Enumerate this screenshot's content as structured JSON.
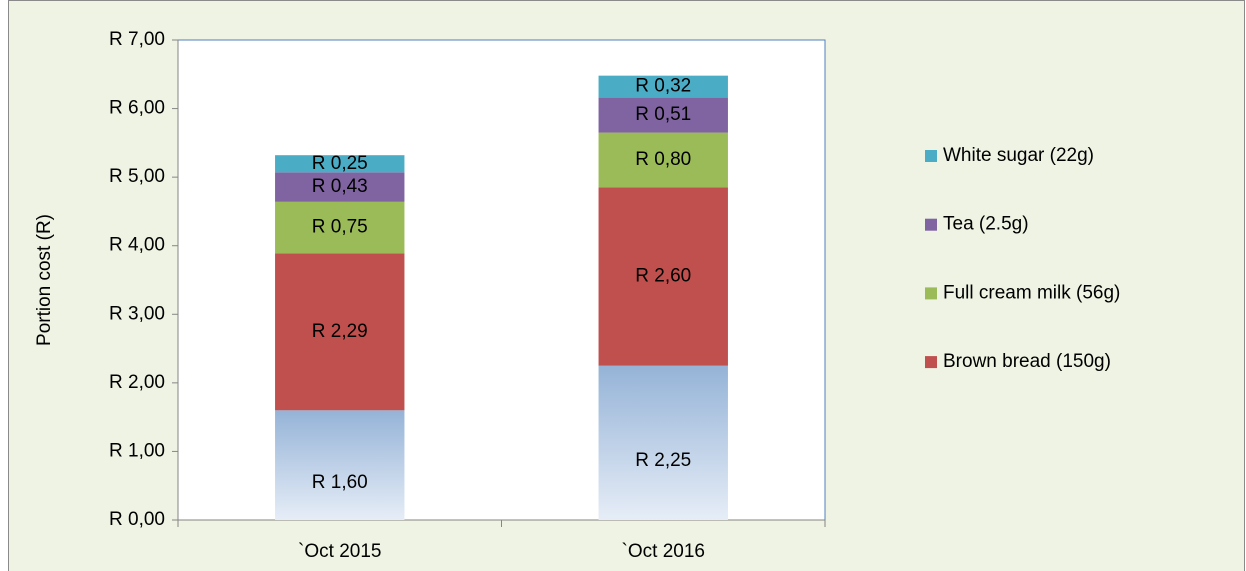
{
  "chart_data": {
    "type": "stacked-bar",
    "y_label": "Portion cost (R)",
    "categories": [
      "`Oct 2015",
      "`Oct 2016"
    ],
    "series": [
      {
        "color": "#95b3d7",
        "gradient": true,
        "values": [
          1.6,
          2.25
        ],
        "value_labels": [
          "R 1,60",
          "R 2,25"
        ]
      },
      {
        "name": "Brown bread (150g)",
        "color": "#c0504d",
        "values": [
          2.29,
          2.6
        ],
        "value_labels": [
          "R 2,29",
          "R 2,60"
        ]
      },
      {
        "name": "Full cream milk (56g)",
        "color": "#9bbb59",
        "values": [
          0.75,
          0.8
        ],
        "value_labels": [
          "R 0,75",
          "R 0,80"
        ]
      },
      {
        "name": "Tea (2.5g)",
        "color": "#8064a2",
        "values": [
          0.43,
          0.51
        ],
        "value_labels": [
          "R 0,43",
          "R 0,51"
        ]
      },
      {
        "name": "White sugar (22g)",
        "color": "#4bacc6",
        "values": [
          0.25,
          0.32
        ],
        "value_labels": [
          "R 0,25",
          "R 0,32"
        ]
      }
    ],
    "ylim": [
      0,
      7
    ],
    "yticks": [
      {
        "value": 0,
        "label": "R 0,00"
      },
      {
        "value": 1,
        "label": "R 1,00"
      },
      {
        "value": 2,
        "label": "R 2,00"
      },
      {
        "value": 3,
        "label": "R 3,00"
      },
      {
        "value": 4,
        "label": "R 4,00"
      },
      {
        "value": 5,
        "label": "R 5,00"
      },
      {
        "value": 6,
        "label": "R 6,00"
      },
      {
        "value": 7,
        "label": "R 7,00"
      }
    ],
    "grid": false,
    "legend": "right"
  }
}
